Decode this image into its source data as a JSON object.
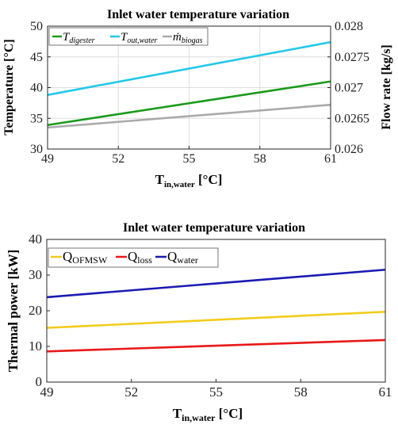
{
  "chart_data": [
    {
      "type": "line",
      "title": "Inlet water temperature variation",
      "xlabel": "T_in,water [°C]",
      "ylabel": "Temperature [°C]",
      "ylabel_right": "Flow rate [kg/s]",
      "xlim": [
        49,
        61
      ],
      "ylim": [
        30,
        50
      ],
      "ylim_right": [
        0.026,
        0.028
      ],
      "xticks": [
        "49",
        "52",
        "55",
        "58",
        "61"
      ],
      "yticks": [
        "30",
        "35",
        "40",
        "45",
        "50"
      ],
      "yticks_right": [
        "0.026",
        "0.0265",
        "0.027",
        "0.0275",
        "0.028"
      ],
      "grid": true,
      "legend": "top-left",
      "series": [
        {
          "name": "T_digester",
          "axis": "left",
          "color": "#1a9a1a",
          "x": [
            49,
            61
          ],
          "y": [
            33.9,
            41.0
          ]
        },
        {
          "name": "T_out,water",
          "axis": "left",
          "color": "#22c8e8",
          "x": [
            49,
            61
          ],
          "y": [
            38.8,
            47.4
          ]
        },
        {
          "name": "ṁ_biogas",
          "axis": "right",
          "color": "#aaaaaa",
          "x": [
            49,
            61
          ],
          "y": [
            0.02635,
            0.02672
          ]
        }
      ]
    },
    {
      "type": "line",
      "title": "Inlet water temperature variation",
      "xlabel": "T_in,water [°C]",
      "ylabel": "Thermal power [kW]",
      "xlim": [
        49,
        61
      ],
      "ylim": [
        0,
        40
      ],
      "xticks": [
        "49",
        "52",
        "55",
        "58",
        "61"
      ],
      "yticks": [
        "0",
        "10",
        "20",
        "30",
        "40"
      ],
      "grid": false,
      "legend": "top-left",
      "series": [
        {
          "name": "Q_OFMSW",
          "color": "#f2cc1a",
          "x": [
            49,
            61
          ],
          "y": [
            15.2,
            19.7
          ]
        },
        {
          "name": "Q_loss",
          "color": "#e81818",
          "x": [
            49,
            61
          ],
          "y": [
            8.6,
            11.8
          ]
        },
        {
          "name": "Q_water",
          "color": "#1a1ab4",
          "x": [
            49,
            61
          ],
          "y": [
            23.8,
            31.5
          ]
        }
      ]
    }
  ],
  "legend1": {
    "digester_main": "T",
    "digester_sub": "digester",
    "outwater_main": "T",
    "outwater_sub": "out,water",
    "biogas_main": "ṁ",
    "biogas_sub": "biogas"
  },
  "legend2": {
    "ofmsw_main": "Q",
    "ofmsw_sub": "OFMSW",
    "loss_main": "Q",
    "loss_sub": "loss",
    "water_main": "Q",
    "water_sub": "water"
  },
  "xlabel_parts": {
    "main": "T",
    "sub": "in,water",
    "unit": " [°C]"
  }
}
